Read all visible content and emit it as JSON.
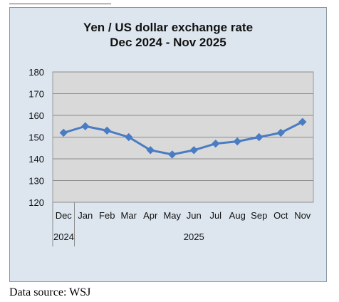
{
  "chart_data": {
    "type": "line",
    "title": "Yen / US dollar exchange rate",
    "subtitle": "Dec 2024  - Nov 2025",
    "categories": [
      "Dec",
      "Jan",
      "Feb",
      "Mar",
      "Apr",
      "May",
      "Jun",
      "Jul",
      "Aug",
      "Sep",
      "Oct",
      "Nov"
    ],
    "year_groups": [
      {
        "label": "2024",
        "months": [
          "Dec"
        ]
      },
      {
        "label": "2025",
        "months": [
          "Jan",
          "Feb",
          "Mar",
          "Apr",
          "May",
          "Jun",
          "Jul",
          "Aug",
          "Sep",
          "Oct",
          "Nov"
        ]
      }
    ],
    "values": [
      152,
      155,
      153,
      150,
      144,
      142,
      144,
      147,
      148,
      150,
      152,
      157
    ],
    "ylim": [
      120,
      180
    ],
    "yticks": [
      120,
      130,
      140,
      150,
      160,
      170,
      180
    ],
    "grid": true,
    "legend": "none",
    "colors": {
      "line": "#4a7cc4",
      "plot_bg": "#d9d9d9",
      "frame_bg": "#dde6ef"
    }
  },
  "footer": {
    "source": "Data source: WSJ"
  }
}
